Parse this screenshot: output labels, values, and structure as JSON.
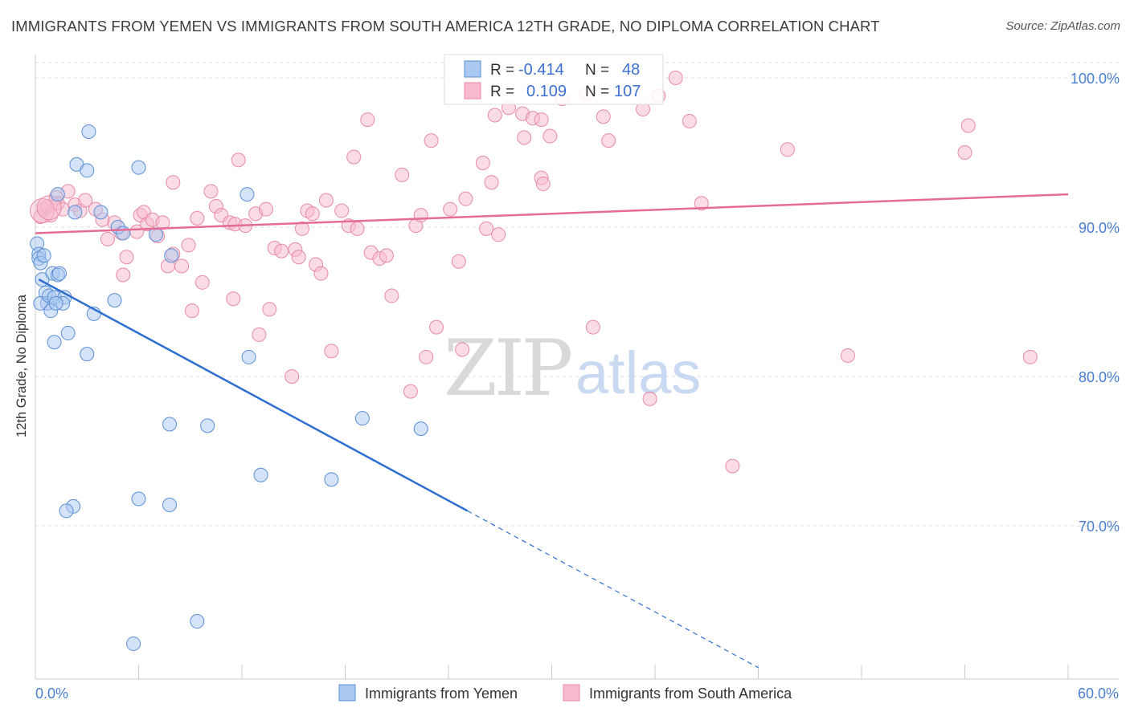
{
  "header": {
    "title": "IMMIGRANTS FROM YEMEN VS IMMIGRANTS FROM SOUTH AMERICA 12TH GRADE, NO DIPLOMA CORRELATION CHART",
    "source": "Source: ZipAtlas.com"
  },
  "watermark": {
    "zip": "ZIP",
    "atlas": "atlas"
  },
  "stats": {
    "r_label": "R =",
    "n_label": "N =",
    "series": [
      {
        "r": "-0.414",
        "n": "48"
      },
      {
        "r": "0.109",
        "n": "107"
      }
    ]
  },
  "colors": {
    "yemen_fill": "#aac8f0",
    "yemen_stroke": "#5b8fd8",
    "yemen_line": "#2e6fd0",
    "sa_fill": "#f7b9cb",
    "sa_stroke": "#e88aa8",
    "sa_line": "#e46c96",
    "tick_text": "#4a7fd0",
    "grid": "#dddddd"
  },
  "chart_data": {
    "type": "scatter",
    "title": "IMMIGRANTS FROM YEMEN VS IMMIGRANTS FROM SOUTH AMERICA 12TH GRADE, NO DIPLOMA CORRELATION CHART",
    "xlabel": "",
    "ylabel": "12th Grade, No Diploma",
    "xlim": [
      0,
      60
    ],
    "ylim": [
      62,
      101
    ],
    "x_tick_labels": [
      "0.0%",
      "60.0%"
    ],
    "y_ticks": [
      70,
      80,
      90,
      100
    ],
    "y_tick_labels": [
      "70.0%",
      "80.0%",
      "90.0%",
      "100.0%"
    ],
    "grid": true,
    "legend": "bottom-center",
    "series": [
      {
        "name": "Immigrants from Yemen",
        "r": -0.414,
        "n": 48,
        "trend": {
          "x0": 0.2,
          "y0": 86.5,
          "x1": 25.1,
          "y1": 71.0,
          "dash_to_x": 42.0,
          "dash_to_y": 60.5
        },
        "points": [
          [
            0.1,
            88.9
          ],
          [
            0.2,
            88.2
          ],
          [
            0.2,
            87.9
          ],
          [
            0.3,
            87.6
          ],
          [
            0.5,
            88.1
          ],
          [
            0.4,
            86.5
          ],
          [
            0.6,
            85.6
          ],
          [
            0.7,
            84.9
          ],
          [
            0.3,
            84.9
          ],
          [
            0.8,
            85.4
          ],
          [
            0.9,
            84.4
          ],
          [
            1.0,
            86.9
          ],
          [
            1.1,
            85.3
          ],
          [
            1.3,
            86.8
          ],
          [
            1.4,
            86.9
          ],
          [
            1.7,
            85.3
          ],
          [
            1.6,
            84.9
          ],
          [
            1.2,
            84.9
          ],
          [
            1.1,
            82.3
          ],
          [
            1.9,
            82.9
          ],
          [
            3.0,
            81.5
          ],
          [
            3.4,
            84.2
          ],
          [
            4.6,
            85.1
          ],
          [
            3.1,
            96.4
          ],
          [
            2.4,
            94.2
          ],
          [
            3.0,
            93.8
          ],
          [
            1.3,
            92.2
          ],
          [
            2.3,
            91.0
          ],
          [
            3.8,
            91.0
          ],
          [
            4.8,
            90.0
          ],
          [
            5.1,
            89.6
          ],
          [
            6.0,
            94.0
          ],
          [
            7.0,
            89.5
          ],
          [
            7.9,
            88.1
          ],
          [
            12.3,
            92.2
          ],
          [
            12.4,
            81.3
          ],
          [
            7.8,
            76.8
          ],
          [
            10.0,
            76.7
          ],
          [
            6.0,
            71.8
          ],
          [
            7.8,
            71.4
          ],
          [
            2.2,
            71.3
          ],
          [
            1.8,
            71.0
          ],
          [
            13.1,
            73.4
          ],
          [
            17.2,
            73.1
          ],
          [
            19.0,
            77.2
          ],
          [
            22.4,
            76.5
          ],
          [
            9.4,
            63.6
          ],
          [
            5.7,
            62.1
          ]
        ]
      },
      {
        "name": "Immigrants from South America",
        "r": 0.109,
        "n": 107,
        "trend": {
          "x0": 0.0,
          "y0": 89.6,
          "x1": 60.0,
          "y1": 92.2
        },
        "points": [
          [
            0.3,
            90.7
          ],
          [
            0.5,
            91.2
          ],
          [
            0.7,
            91.4
          ],
          [
            0.9,
            90.8
          ],
          [
            1.2,
            92.0
          ],
          [
            1.3,
            91.6
          ],
          [
            1.6,
            91.2
          ],
          [
            1.9,
            92.4
          ],
          [
            2.3,
            91.5
          ],
          [
            2.6,
            91.1
          ],
          [
            2.9,
            91.8
          ],
          [
            3.5,
            91.2
          ],
          [
            3.9,
            90.5
          ],
          [
            4.2,
            89.2
          ],
          [
            4.6,
            90.3
          ],
          [
            5.0,
            89.6
          ],
          [
            5.1,
            86.8
          ],
          [
            5.3,
            88.0
          ],
          [
            5.9,
            89.7
          ],
          [
            6.1,
            90.8
          ],
          [
            6.3,
            91.0
          ],
          [
            6.5,
            90.2
          ],
          [
            6.8,
            90.5
          ],
          [
            7.1,
            89.4
          ],
          [
            7.4,
            90.3
          ],
          [
            7.7,
            87.4
          ],
          [
            8.0,
            88.2
          ],
          [
            8.0,
            93.0
          ],
          [
            8.5,
            87.4
          ],
          [
            8.9,
            88.8
          ],
          [
            9.1,
            84.4
          ],
          [
            9.4,
            90.6
          ],
          [
            9.7,
            86.3
          ],
          [
            10.2,
            92.4
          ],
          [
            10.5,
            91.4
          ],
          [
            10.8,
            90.8
          ],
          [
            11.3,
            90.3
          ],
          [
            11.5,
            85.2
          ],
          [
            11.6,
            90.2
          ],
          [
            11.8,
            94.5
          ],
          [
            12.2,
            90.1
          ],
          [
            12.8,
            90.9
          ],
          [
            13.0,
            82.8
          ],
          [
            13.4,
            91.2
          ],
          [
            13.6,
            84.5
          ],
          [
            13.9,
            88.6
          ],
          [
            14.3,
            88.4
          ],
          [
            14.9,
            80.0
          ],
          [
            15.1,
            88.5
          ],
          [
            15.3,
            88.0
          ],
          [
            15.5,
            89.9
          ],
          [
            15.8,
            91.1
          ],
          [
            16.1,
            90.9
          ],
          [
            16.3,
            87.5
          ],
          [
            16.6,
            86.9
          ],
          [
            16.9,
            91.8
          ],
          [
            17.2,
            81.7
          ],
          [
            17.8,
            91.1
          ],
          [
            18.2,
            90.1
          ],
          [
            18.5,
            94.7
          ],
          [
            18.7,
            89.9
          ],
          [
            19.3,
            97.2
          ],
          [
            19.5,
            88.3
          ],
          [
            20.0,
            87.9
          ],
          [
            20.4,
            88.1
          ],
          [
            20.7,
            85.4
          ],
          [
            21.3,
            93.5
          ],
          [
            21.8,
            79.0
          ],
          [
            22.1,
            90.1
          ],
          [
            22.4,
            90.8
          ],
          [
            22.7,
            81.3
          ],
          [
            23.0,
            95.8
          ],
          [
            23.3,
            83.3
          ],
          [
            24.1,
            91.2
          ],
          [
            24.6,
            87.7
          ],
          [
            24.8,
            81.8
          ],
          [
            25.0,
            91.9
          ],
          [
            25.4,
            100.0
          ],
          [
            26.0,
            94.3
          ],
          [
            26.2,
            89.9
          ],
          [
            26.5,
            93.0
          ],
          [
            26.7,
            97.5
          ],
          [
            26.9,
            89.5
          ],
          [
            27.5,
            98.0
          ],
          [
            28.3,
            97.6
          ],
          [
            28.4,
            96.0
          ],
          [
            28.9,
            97.3
          ],
          [
            29.4,
            97.2
          ],
          [
            29.4,
            93.3
          ],
          [
            29.5,
            92.9
          ],
          [
            29.9,
            96.1
          ],
          [
            30.6,
            98.6
          ],
          [
            32.0,
            98.9
          ],
          [
            32.4,
            83.3
          ],
          [
            33.0,
            97.4
          ],
          [
            33.3,
            95.8
          ],
          [
            35.3,
            97.9
          ],
          [
            35.7,
            78.5
          ],
          [
            36.2,
            98.8
          ],
          [
            37.2,
            100.0
          ],
          [
            38.0,
            97.1
          ],
          [
            38.7,
            91.6
          ],
          [
            40.5,
            74.0
          ],
          [
            43.7,
            95.2
          ],
          [
            47.2,
            81.4
          ],
          [
            54.0,
            95.0
          ],
          [
            54.2,
            96.8
          ],
          [
            57.8,
            81.3
          ]
        ]
      }
    ]
  }
}
